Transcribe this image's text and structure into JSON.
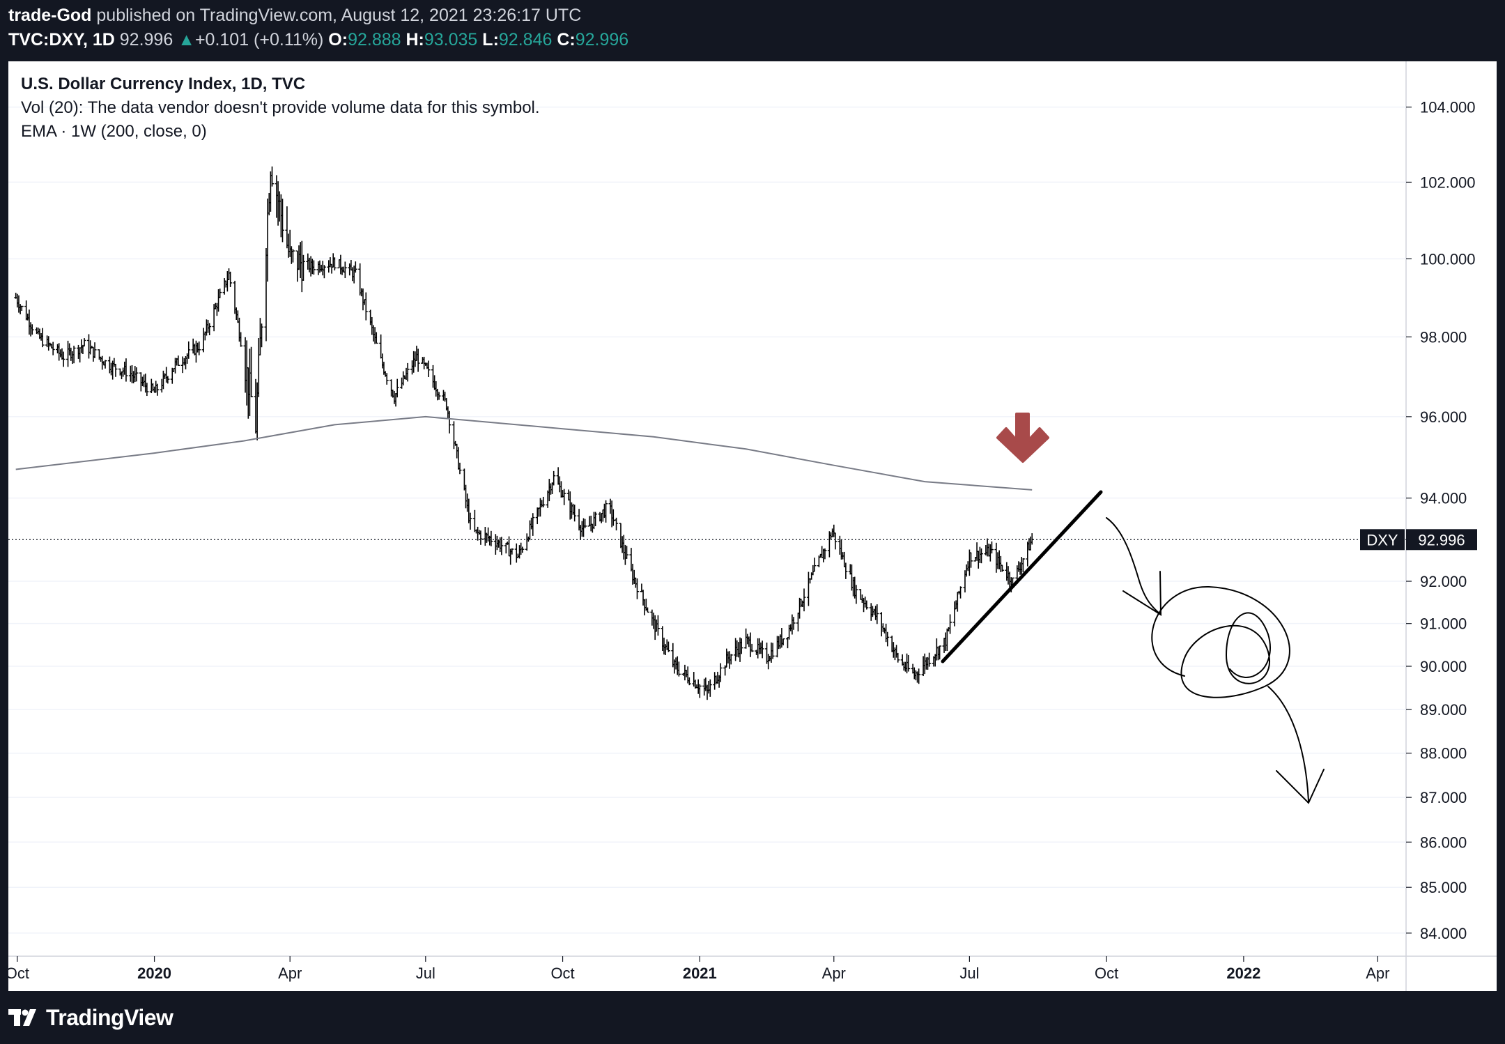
{
  "header": {
    "author": "trade-God",
    "publish_text": "published on TradingView.com, August 12, 2021 23:26:17 UTC",
    "symbol": "TVC:DXY, 1D",
    "last": "92.996",
    "change_arrow": "▲",
    "change": "+0.101 (+0.11%)",
    "o_label": "O:",
    "o_value": "92.888",
    "h_label": "H:",
    "h_value": "93.035",
    "l_label": "L:",
    "l_value": "92.846",
    "c_label": "C:",
    "c_value": "92.996"
  },
  "legend": {
    "line1": "U.S. Dollar Currency Index, 1D, TVC",
    "line2": "Vol (20): The data vendor doesn't provide volume data for this symbol.",
    "line3": "EMA · 1W (200, close, 0)"
  },
  "price_tag": {
    "symbol": "DXY",
    "value": "92.996"
  },
  "footer": {
    "brand": "TradingView",
    "logo_icon": "tradingview-logo-icon"
  },
  "colors": {
    "background": "#131722",
    "panel": "#ffffff",
    "bars": "#000000",
    "ema": "#787b86",
    "arrow": "#a84a4a",
    "up": "#26a69a"
  },
  "chart_data": {
    "type": "line",
    "subtype": "ohlc-bars",
    "yscale": "log",
    "ylim": [
      83.5,
      105.2
    ],
    "y_ticks": [
      "104.000",
      "102.000",
      "100.000",
      "98.000",
      "96.000",
      "94.000",
      "92.000",
      "91.000",
      "90.000",
      "89.000",
      "88.000",
      "87.000",
      "86.000",
      "85.000",
      "84.000"
    ],
    "x_ticks": [
      {
        "label": "Oct",
        "bold": false
      },
      {
        "label": "2020",
        "bold": true
      },
      {
        "label": "Apr",
        "bold": false
      },
      {
        "label": "Jul",
        "bold": false
      },
      {
        "label": "Oct",
        "bold": false
      },
      {
        "label": "2021",
        "bold": true
      },
      {
        "label": "Apr",
        "bold": false
      },
      {
        "label": "Jul",
        "bold": false
      },
      {
        "label": "Oct",
        "bold": false
      },
      {
        "label": "2022",
        "bold": true
      },
      {
        "label": "Apr",
        "bold": false
      }
    ],
    "series": [
      {
        "name": "DXY",
        "x": [
          "2019-09-30",
          "2019-10-15",
          "2019-11-01",
          "2019-11-15",
          "2019-12-01",
          "2019-12-15",
          "2020-01-01",
          "2020-01-15",
          "2020-02-01",
          "2020-02-20",
          "2020-03-09",
          "2020-03-19",
          "2020-04-01",
          "2020-04-15",
          "2020-05-01",
          "2020-05-15",
          "2020-06-01",
          "2020-06-10",
          "2020-06-25",
          "2020-07-01",
          "2020-07-15",
          "2020-08-01",
          "2020-08-15",
          "2020-09-01",
          "2020-09-25",
          "2020-10-15",
          "2020-11-01",
          "2020-11-15",
          "2020-12-01",
          "2020-12-15",
          "2021-01-06",
          "2021-01-20",
          "2021-02-01",
          "2021-02-15",
          "2021-03-01",
          "2021-03-31",
          "2021-04-15",
          "2021-05-01",
          "2021-05-15",
          "2021-05-25",
          "2021-06-15",
          "2021-07-01",
          "2021-07-15",
          "2021-07-30",
          "2021-08-12"
        ],
        "values": [
          99.0,
          98.0,
          97.5,
          97.8,
          97.3,
          97.1,
          96.6,
          97.3,
          97.8,
          99.6,
          95.8,
          102.5,
          100.0,
          99.8,
          99.9,
          99.6,
          97.4,
          96.5,
          97.5,
          97.2,
          96.3,
          93.2,
          93.0,
          92.6,
          94.5,
          93.2,
          93.8,
          92.3,
          91.0,
          90.0,
          89.4,
          90.2,
          90.6,
          90.2,
          90.8,
          93.2,
          91.8,
          91.1,
          90.1,
          89.8,
          90.6,
          92.6,
          92.7,
          92.0,
          93.0
        ]
      },
      {
        "name": "EMA · 1W (200, close, 0)",
        "x": [
          "2019-09-30",
          "2020-01-01",
          "2020-03-01",
          "2020-05-01",
          "2020-07-01",
          "2020-08-01",
          "2020-10-01",
          "2020-12-01",
          "2021-02-01",
          "2021-04-01",
          "2021-06-01",
          "2021-08-12"
        ],
        "values": [
          94.7,
          95.1,
          95.4,
          95.8,
          96.0,
          95.9,
          95.7,
          95.5,
          95.2,
          94.8,
          94.4,
          94.2
        ]
      }
    ],
    "annotations": [
      "down-arrow",
      "uptrend-line",
      "projection-scribble"
    ]
  }
}
